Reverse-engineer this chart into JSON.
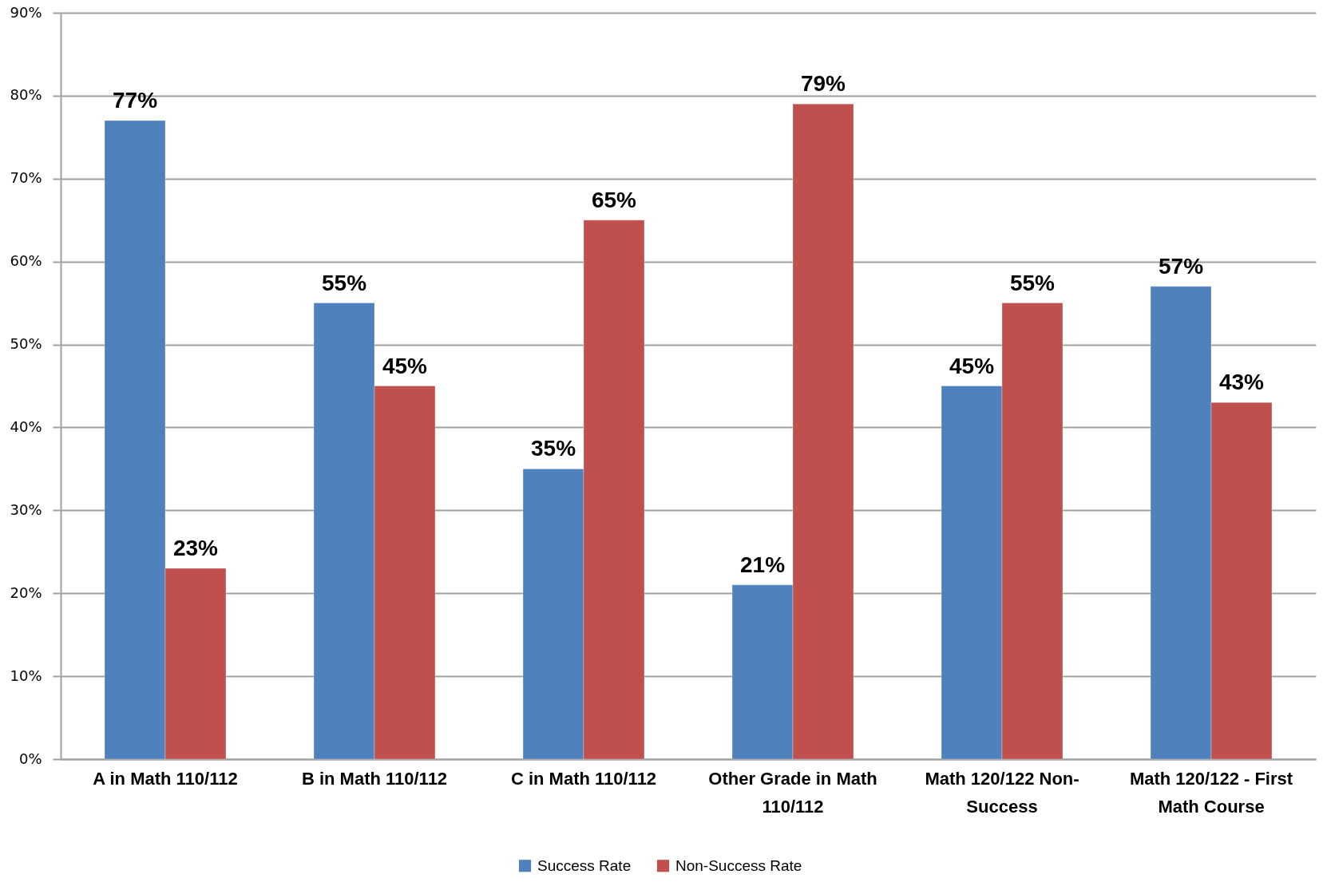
{
  "chart_data": {
    "type": "bar",
    "categories": [
      "A in Math 110/112",
      "B in Math 110/112",
      "C in Math 110/112",
      "Other Grade in Math 110/112",
      "Math 120/122 Non-Success",
      "Math 120/122 - First Math Course"
    ],
    "series": [
      {
        "name": "Success Rate",
        "color": "#4f81bd",
        "values": [
          77,
          55,
          35,
          21,
          45,
          57
        ],
        "value_labels": [
          "77%",
          "55%",
          "35%",
          "21%",
          "45%",
          "57%"
        ]
      },
      {
        "name": "Non-Success Rate",
        "color": "#c0504d",
        "values": [
          23,
          45,
          65,
          79,
          55,
          43
        ],
        "value_labels": [
          "23%",
          "45%",
          "65%",
          "79%",
          "55%",
          "43%"
        ]
      }
    ],
    "ylim": [
      0,
      90
    ],
    "yticks": [
      {
        "value": 0,
        "label": "0%"
      },
      {
        "value": 10,
        "label": "10%"
      },
      {
        "value": 20,
        "label": "20%"
      },
      {
        "value": 30,
        "label": "30%"
      },
      {
        "value": 40,
        "label": "40%"
      },
      {
        "value": 50,
        "label": "50%"
      },
      {
        "value": 60,
        "label": "60%"
      },
      {
        "value": 70,
        "label": "70%"
      },
      {
        "value": 80,
        "label": "80%"
      },
      {
        "value": 90,
        "label": "90%"
      }
    ],
    "grid": "y",
    "legend": "bottom"
  }
}
